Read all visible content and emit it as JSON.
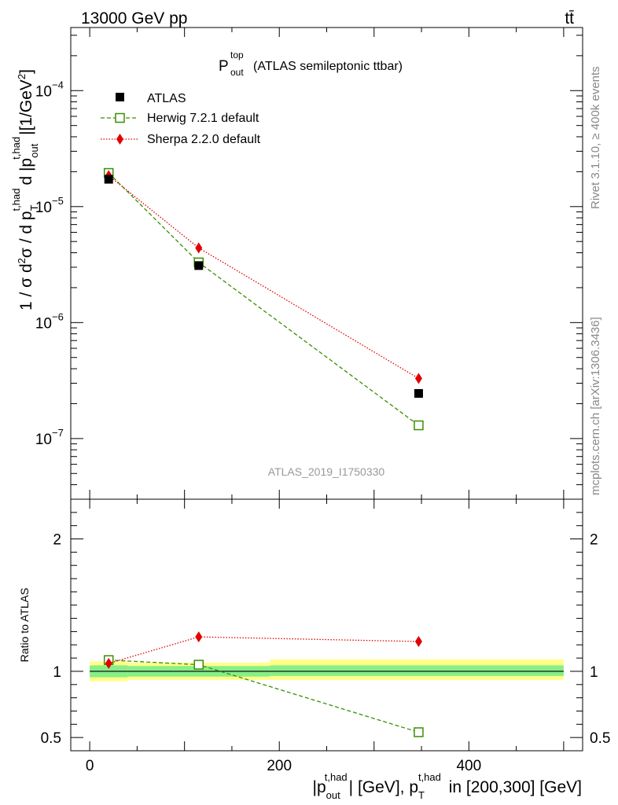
{
  "header": {
    "left": "13000 GeV pp",
    "right": "tt̄"
  },
  "side": {
    "rivet": "Rivet 3.1.10, ≥ 400k events",
    "site": "mcplots.cern.ch [arXiv:1306.3436]"
  },
  "chart_data": [
    {
      "type": "line",
      "panel": "main",
      "title": "(ATLAS semileptonic ttbar)",
      "title_symbol": "P",
      "title_sup": "top",
      "title_sub": "out",
      "ylabel": "1 / σ d²σ / d p_T^{t,had} d |p_out^{t,had}| [1/GeV²]",
      "yscale": "log",
      "ylim": [
        3e-08,
        0.00035
      ],
      "xlim": [
        -20,
        520
      ],
      "yticks": [
        {
          "value": 1e-07,
          "label": "10",
          "exp": "−7"
        },
        {
          "value": 1e-06,
          "label": "10",
          "exp": "−6"
        },
        {
          "value": 1e-05,
          "label": "10",
          "exp": "−5"
        },
        {
          "value": 0.0001,
          "label": "10",
          "exp": "−4"
        }
      ],
      "watermark": "ATLAS_2019_I1750330",
      "legend_position": "top-left",
      "series": [
        {
          "name": "ATLAS",
          "color": "#000000",
          "marker": "filled-square",
          "line": "none",
          "x": [
            20,
            115,
            347
          ],
          "y": [
            1.72e-05,
            3.1e-06,
            2.45e-07
          ]
        },
        {
          "name": "Herwig 7.2.1 default",
          "color": "#3a8f00",
          "marker": "open-square",
          "line": "dashed",
          "x": [
            20,
            115,
            347
          ],
          "y": [
            1.95e-05,
            3.3e-06,
            1.3e-07
          ]
        },
        {
          "name": "Sherpa 2.2.0 default",
          "color": "#e00000",
          "marker": "diamond",
          "line": "dotted",
          "x": [
            20,
            115,
            347
          ],
          "y": [
            1.85e-05,
            4.4e-06,
            3.3e-07
          ]
        }
      ]
    },
    {
      "type": "line",
      "panel": "ratio",
      "ylabel": "Ratio to ATLAS",
      "xlabel": "|p_out^{t,had}| [GeV], p_T^{t,had} in [200,300] [GeV]",
      "ylim": [
        0.4,
        2.3
      ],
      "xlim": [
        -20,
        520
      ],
      "yticks": [
        {
          "value": 0.5,
          "label": "0.5"
        },
        {
          "value": 1,
          "label": "1"
        },
        {
          "value": 2,
          "label": "2"
        }
      ],
      "xticks": [
        {
          "value": 0,
          "label": "0"
        },
        {
          "value": 200,
          "label": "200"
        },
        {
          "value": 400,
          "label": "400"
        }
      ],
      "bands": [
        {
          "x0": 0,
          "x1": 40,
          "yellow": [
            0.925,
            1.075
          ],
          "green": [
            0.955,
            1.045
          ]
        },
        {
          "x0": 40,
          "x1": 190,
          "yellow": [
            0.935,
            1.065
          ],
          "green": [
            0.96,
            1.04
          ]
        },
        {
          "x0": 190,
          "x1": 500,
          "yellow": [
            0.935,
            1.09
          ],
          "green": [
            0.965,
            1.045
          ]
        }
      ],
      "series": [
        {
          "name": "Herwig 7.2.1 default",
          "color": "#3a8f00",
          "marker": "open-square",
          "line": "dashed",
          "x": [
            20,
            115,
            347
          ],
          "y": [
            1.085,
            1.05,
            0.54
          ]
        },
        {
          "name": "Sherpa 2.2.0 default",
          "color": "#e00000",
          "marker": "diamond",
          "line": "dotted",
          "x": [
            20,
            115,
            347
          ],
          "y": [
            1.06,
            1.26,
            1.225
          ]
        }
      ]
    }
  ]
}
